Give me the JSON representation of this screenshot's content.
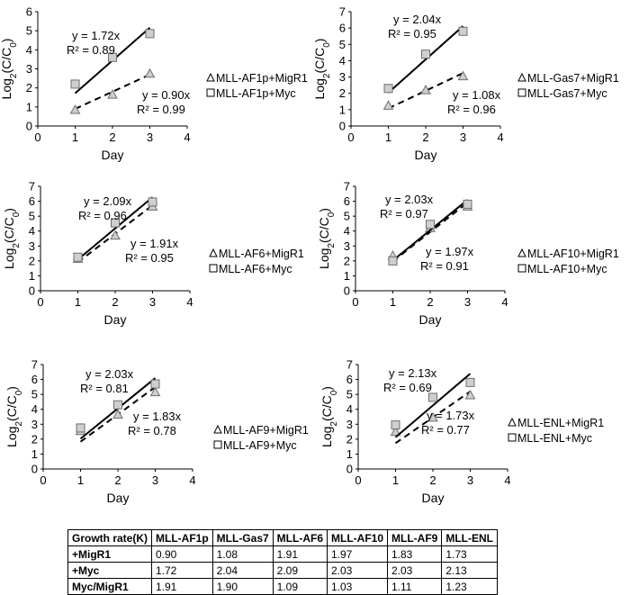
{
  "chart_data": [
    {
      "type": "scatter",
      "xlabel": "Day",
      "ylabel": "Log2(C/C0)",
      "xlim": [
        0,
        4
      ],
      "ylim": [
        0,
        6
      ],
      "xticks": [
        0,
        1,
        2,
        3,
        4
      ],
      "yticks": [
        0,
        1,
        2,
        3,
        4,
        5,
        6
      ],
      "series": [
        {
          "name": "MLL-AF1p+MigR1",
          "marker": "triangle",
          "line": "dashed",
          "x": [
            1,
            2,
            3
          ],
          "y": [
            0.85,
            1.65,
            2.75
          ],
          "slope": 0.9,
          "equation": "y = 0.90x",
          "r2": "R² = 0.99"
        },
        {
          "name": "MLL-AF1p+Myc",
          "marker": "square",
          "line": "solid",
          "x": [
            1,
            2,
            3
          ],
          "y": [
            2.2,
            3.6,
            4.85
          ],
          "slope": 1.72,
          "equation": "y = 1.72x",
          "r2": "R² = 0.89"
        }
      ]
    },
    {
      "type": "scatter",
      "xlabel": "Day",
      "ylabel": "Log2(C/C0)",
      "xlim": [
        0,
        4
      ],
      "ylim": [
        0,
        7
      ],
      "xticks": [
        0,
        1,
        2,
        3,
        4
      ],
      "yticks": [
        0,
        1,
        2,
        3,
        4,
        5,
        6,
        7
      ],
      "series": [
        {
          "name": "MLL-Gas7+MigR1",
          "marker": "triangle",
          "line": "dashed",
          "x": [
            1,
            2,
            3
          ],
          "y": [
            1.25,
            2.2,
            3.05
          ],
          "slope": 1.08,
          "equation": "y = 1.08x",
          "r2": "R² = 0.96"
        },
        {
          "name": "MLL-Gas7+Myc",
          "marker": "square",
          "line": "solid",
          "x": [
            1,
            2,
            3
          ],
          "y": [
            2.3,
            4.4,
            5.8
          ],
          "slope": 2.04,
          "equation": "y = 2.04x",
          "r2": "R² = 0.95"
        }
      ]
    },
    {
      "type": "scatter",
      "xlabel": "Day",
      "ylabel": "Log2(C/C0)",
      "xlim": [
        0,
        4
      ],
      "ylim": [
        0,
        7
      ],
      "xticks": [
        0,
        1,
        2,
        3,
        4
      ],
      "yticks": [
        0,
        1,
        2,
        3,
        4,
        5,
        6,
        7
      ],
      "series": [
        {
          "name": "MLL-AF6+MigR1",
          "marker": "triangle",
          "line": "dashed",
          "x": [
            1,
            2,
            3
          ],
          "y": [
            2.15,
            3.7,
            5.65
          ],
          "slope": 1.91,
          "equation": "y = 1.91x",
          "r2": "R² = 0.95"
        },
        {
          "name": "MLL-AF6+Myc",
          "marker": "square",
          "line": "solid",
          "x": [
            1,
            2,
            3
          ],
          "y": [
            2.25,
            4.55,
            5.95
          ],
          "slope": 2.09,
          "equation": "y = 2.09x",
          "r2": "R² = 0.96"
        }
      ]
    },
    {
      "type": "scatter",
      "xlabel": "Day",
      "ylabel": "Log2(C/C0)",
      "xlim": [
        0,
        4
      ],
      "ylim": [
        0,
        7
      ],
      "xticks": [
        0,
        1,
        2,
        3,
        4
      ],
      "yticks": [
        0,
        1,
        2,
        3,
        4,
        5,
        6,
        7
      ],
      "series": [
        {
          "name": "MLL-AF10+MigR1",
          "marker": "triangle",
          "line": "dashed",
          "x": [
            1,
            2,
            3
          ],
          "y": [
            2.35,
            4.2,
            5.65
          ],
          "slope": 1.97,
          "equation": "y = 1.97x",
          "r2": "R² = 0.91"
        },
        {
          "name": "MLL-AF10+Myc",
          "marker": "square",
          "line": "solid",
          "x": [
            1,
            2,
            3
          ],
          "y": [
            2.0,
            4.45,
            5.8
          ],
          "slope": 2.03,
          "equation": "y = 2.03x",
          "r2": "R² = 0.97"
        }
      ]
    },
    {
      "type": "scatter",
      "xlabel": "Day",
      "ylabel": "Log2(C/C0)",
      "xlim": [
        0,
        4
      ],
      "ylim": [
        0,
        7
      ],
      "xticks": [
        0,
        1,
        2,
        3,
        4
      ],
      "yticks": [
        0,
        1,
        2,
        3,
        4,
        5,
        6,
        7
      ],
      "series": [
        {
          "name": "MLL-AF9+MigR1",
          "marker": "triangle",
          "line": "dashed",
          "x": [
            1,
            2,
            3
          ],
          "y": [
            2.55,
            3.65,
            5.15
          ],
          "slope": 1.83,
          "equation": "y = 1.83x",
          "r2": "R² = 0.78"
        },
        {
          "name": "MLL-AF9+Myc",
          "marker": "square",
          "line": "solid",
          "x": [
            1,
            2,
            3
          ],
          "y": [
            2.75,
            4.3,
            5.7
          ],
          "slope": 2.03,
          "equation": "y = 2.03x",
          "r2": "R² = 0.81"
        }
      ]
    },
    {
      "type": "scatter",
      "xlabel": "Day",
      "ylabel": "Log2(C/C0)",
      "xlim": [
        0,
        4
      ],
      "ylim": [
        0,
        7
      ],
      "xticks": [
        0,
        1,
        2,
        3,
        4
      ],
      "yticks": [
        0,
        1,
        2,
        3,
        4,
        5,
        6,
        7
      ],
      "series": [
        {
          "name": "MLL-ENL+MigR1",
          "marker": "triangle",
          "line": "dashed",
          "x": [
            1,
            2,
            3
          ],
          "y": [
            2.5,
            3.45,
            4.95
          ],
          "slope": 1.73,
          "equation": "y = 1.73x",
          "r2": "R² = 0.77"
        },
        {
          "name": "MLL-ENL+Myc",
          "marker": "square",
          "line": "solid",
          "x": [
            1,
            2,
            3
          ],
          "y": [
            2.95,
            4.8,
            5.8
          ],
          "slope": 2.13,
          "equation": "y = 2.13x",
          "r2": "R² = 0.69"
        }
      ]
    }
  ],
  "table": {
    "header": [
      "Growth rate(K)",
      "MLL-AF1p",
      "MLL-Gas7",
      "MLL-AF6",
      "MLL-AF10",
      "MLL-AF9",
      "MLL-ENL"
    ],
    "rows": [
      [
        "+MigR1",
        "0.90",
        "1.08",
        "1.91",
        "1.97",
        "1.83",
        "1.73"
      ],
      [
        "+Myc",
        "1.72",
        "2.04",
        "2.09",
        "2.03",
        "2.03",
        "2.13"
      ],
      [
        "Myc/MigR1",
        "1.91",
        "1.90",
        "1.09",
        "1.03",
        "1.11",
        "1.23"
      ]
    ]
  }
}
